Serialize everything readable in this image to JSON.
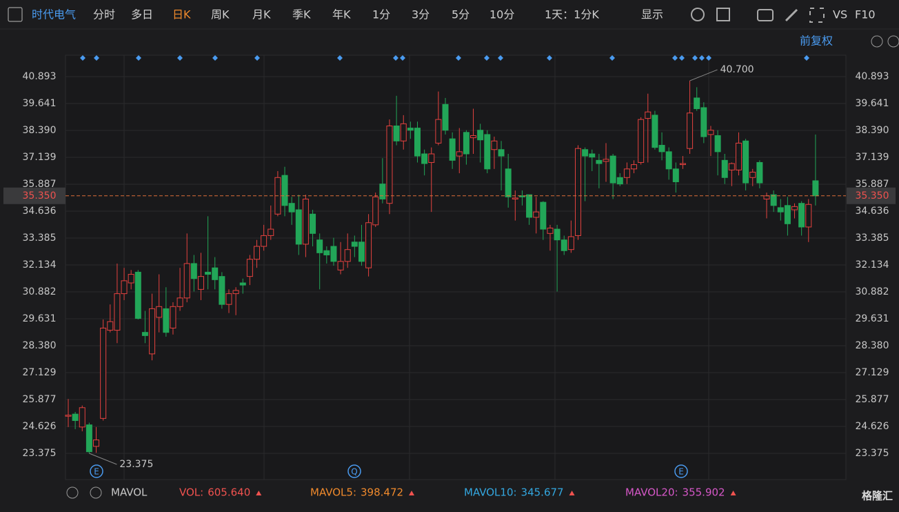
{
  "toolbar": {
    "stock": "时代电气",
    "tabs": [
      "分时",
      "多日",
      "日K",
      "周K",
      "月K",
      "季K",
      "年K",
      "1分",
      "3分",
      "5分",
      "10分"
    ],
    "active_tab": 2,
    "period": "1天：1分K",
    "display": "显示",
    "vs": "VS",
    "f10": "F10"
  },
  "adjust": "前复权",
  "chart_data": {
    "type": "candlestick",
    "ylim": [
      22.156,
      41.888
    ],
    "yticks": [
      {
        "value": 40.893,
        "label": "40.893"
      },
      {
        "value": 39.641,
        "label": "39.641"
      },
      {
        "value": 38.39,
        "label": "38.390"
      },
      {
        "value": 37.139,
        "label": "37.139"
      },
      {
        "value": 35.887,
        "label": "35.887"
      },
      {
        "value": 34.636,
        "label": "34.636"
      },
      {
        "value": 33.385,
        "label": "33.385"
      },
      {
        "value": 32.134,
        "label": "32.134"
      },
      {
        "value": 30.882,
        "label": "30.882"
      },
      {
        "value": 29.631,
        "label": "29.631"
      },
      {
        "value": 28.38,
        "label": "28.380"
      },
      {
        "value": 27.129,
        "label": "27.129"
      },
      {
        "value": 25.877,
        "label": "25.877"
      },
      {
        "value": 24.626,
        "label": "24.626"
      },
      {
        "value": 23.375,
        "label": "23.375"
      }
    ],
    "up_color": "#e5423f",
    "down_color": "#22a658",
    "grid": true,
    "open": [
      25.1,
      25.2,
      24.6,
      24.7,
      23.7,
      25.0,
      29.1,
      29.1,
      30.8,
      31.3,
      31.8,
      29.0,
      28.0,
      29.7,
      30.1,
      29.2,
      30.2,
      30.6,
      32.2,
      31.0,
      31.8,
      32.0,
      31.6,
      30.3,
      30.8,
      31.3,
      31.6,
      32.4,
      33.0,
      33.5,
      34.5,
      36.3,
      35.0,
      34.7,
      33.1,
      34.5,
      33.3,
      32.8,
      33.0,
      31.9,
      32.3,
      33.2,
      33.2,
      32.0,
      34.0,
      35.9,
      35.0,
      38.6,
      37.9,
      38.5,
      38.5,
      37.3,
      36.9,
      37.8,
      39.6,
      38.0,
      37.2,
      38.3,
      38.05,
      38.4,
      38.2,
      37.5,
      37.5,
      36.6,
      35.2,
      35.35,
      35.4,
      34.35,
      35.05,
      33.6,
      33.8,
      33.3,
      32.85,
      33.5,
      37.5,
      37.3,
      37.0,
      36.95,
      37.2,
      36.2,
      36.2,
      36.6,
      36.9,
      38.95,
      39.1,
      37.7,
      37.4,
      36.6,
      36.8,
      37.55,
      39.9,
      39.45,
      38.2,
      38.15,
      37.0,
      36.55,
      36.55,
      37.9,
      36.2,
      36.9,
      35.2,
      35.4,
      34.8,
      34.9,
      34.7,
      35.0,
      33.9,
      36.05
    ],
    "high": [
      25.9,
      25.3,
      25.6,
      24.8,
      24.6,
      29.6,
      30.3,
      32.2,
      32.0,
      31.9,
      31.9,
      30.0,
      30.8,
      31.7,
      31.1,
      30.4,
      32.0,
      33.6,
      32.6,
      32.7,
      34.4,
      32.5,
      31.8,
      31.0,
      31.1,
      31.5,
      32.6,
      33.3,
      34.0,
      34.9,
      36.5,
      36.7,
      35.3,
      35.4,
      35.4,
      34.7,
      33.6,
      33.0,
      33.4,
      33.2,
      33.6,
      33.5,
      34.0,
      34.5,
      35.5,
      37.1,
      38.9,
      40.0,
      39.1,
      38.8,
      38.8,
      37.5,
      37.6,
      40.2,
      39.9,
      38.3,
      38.5,
      38.4,
      39.4,
      38.7,
      38.4,
      38.1,
      37.9,
      37.3,
      35.6,
      35.6,
      35.4,
      35.3,
      35.1,
      34.0,
      34.0,
      33.5,
      34.2,
      37.7,
      37.6,
      37.5,
      37.3,
      37.8,
      37.3,
      36.4,
      36.9,
      37.0,
      39.0,
      40.1,
      39.3,
      38.3,
      37.6,
      36.9,
      37.2,
      40.7,
      40.4,
      39.7,
      38.6,
      38.4,
      37.3,
      36.9,
      38.3,
      38.0,
      36.6,
      37.0,
      35.5,
      35.6,
      35.2,
      35.3,
      35.0,
      35.1,
      35.2,
      38.2
    ],
    "low": [
      24.6,
      24.5,
      24.4,
      23.375,
      23.4,
      24.9,
      29.0,
      28.5,
      30.5,
      31.0,
      29.6,
      28.5,
      27.7,
      29.0,
      28.8,
      28.9,
      30.0,
      30.4,
      30.9,
      30.5,
      31.0,
      31.0,
      30.1,
      29.9,
      29.8,
      30.8,
      31.2,
      32.0,
      32.8,
      33.3,
      34.4,
      34.4,
      34.0,
      32.6,
      32.5,
      33.0,
      31.0,
      32.2,
      32.1,
      31.7,
      32.0,
      32.5,
      32.1,
      31.6,
      33.9,
      35.0,
      34.5,
      37.7,
      37.5,
      38.0,
      36.9,
      36.3,
      34.6,
      37.7,
      38.2,
      36.6,
      36.4,
      36.8,
      37.3,
      36.9,
      36.4,
      36.6,
      35.6,
      34.8,
      34.2,
      34.9,
      34.0,
      33.6,
      33.3,
      32.8,
      30.9,
      32.6,
      32.7,
      33.3,
      35.1,
      36.5,
      35.7,
      36.0,
      35.2,
      35.8,
      35.9,
      36.4,
      36.8,
      36.9,
      37.5,
      37.0,
      36.1,
      35.5,
      36.6,
      37.3,
      39.3,
      37.8,
      37.2,
      36.3,
      35.9,
      35.8,
      36.3,
      35.6,
      35.8,
      35.7,
      34.3,
      34.6,
      34.2,
      33.5,
      34.3,
      33.5,
      33.2,
      34.9
    ],
    "close": [
      25.15,
      24.9,
      25.5,
      23.45,
      24.0,
      29.2,
      29.5,
      30.8,
      31.4,
      31.7,
      29.65,
      28.85,
      30.1,
      30.2,
      29.0,
      30.2,
      30.6,
      32.2,
      31.5,
      31.6,
      31.7,
      31.45,
      30.3,
      30.8,
      30.95,
      31.2,
      32.4,
      33.0,
      33.5,
      33.8,
      36.2,
      34.9,
      34.6,
      33.1,
      35.2,
      33.6,
      32.7,
      32.6,
      32.3,
      32.3,
      32.85,
      33.0,
      32.3,
      34.1,
      35.3,
      35.2,
      38.6,
      37.9,
      38.7,
      38.4,
      37.2,
      36.85,
      37.3,
      38.9,
      38.4,
      37.0,
      37.4,
      37.3,
      38.15,
      37.95,
      36.6,
      37.9,
      37.2,
      35.3,
      35.25,
      35.3,
      34.35,
      34.6,
      33.8,
      33.85,
      33.3,
      32.8,
      33.45,
      37.55,
      37.2,
      37.15,
      36.85,
      37.05,
      35.95,
      35.9,
      36.6,
      36.8,
      38.9,
      39.25,
      37.6,
      37.4,
      36.6,
      36.0,
      36.85,
      39.2,
      39.4,
      38.1,
      38.4,
      37.4,
      36.2,
      36.85,
      37.8,
      35.95,
      36.45,
      35.95,
      35.35,
      34.9,
      34.6,
      34.05,
      34.85,
      33.9,
      34.95,
      35.35
    ],
    "current_price": {
      "value": 35.35,
      "label": "35.350"
    },
    "annotations": [
      {
        "index": 89,
        "value": 40.7,
        "label": "40.700"
      },
      {
        "index": 3,
        "value": 23.375,
        "label": "23.375"
      }
    ]
  },
  "event_markers": [
    "E",
    "Q",
    "E"
  ],
  "indicator_bar": {
    "name": "MAVOL",
    "items": [
      {
        "name": "VOL:",
        "value": "605.640",
        "color": "#f0524f"
      },
      {
        "name": "MAVOL5:",
        "value": "398.472",
        "color": "#f08a2c"
      },
      {
        "name": "MAVOL10:",
        "value": "345.677",
        "color": "#33a7e0"
      },
      {
        "name": "MAVOL20:",
        "value": "355.902",
        "color": "#d657c8"
      }
    ]
  },
  "brand": "格隆汇"
}
